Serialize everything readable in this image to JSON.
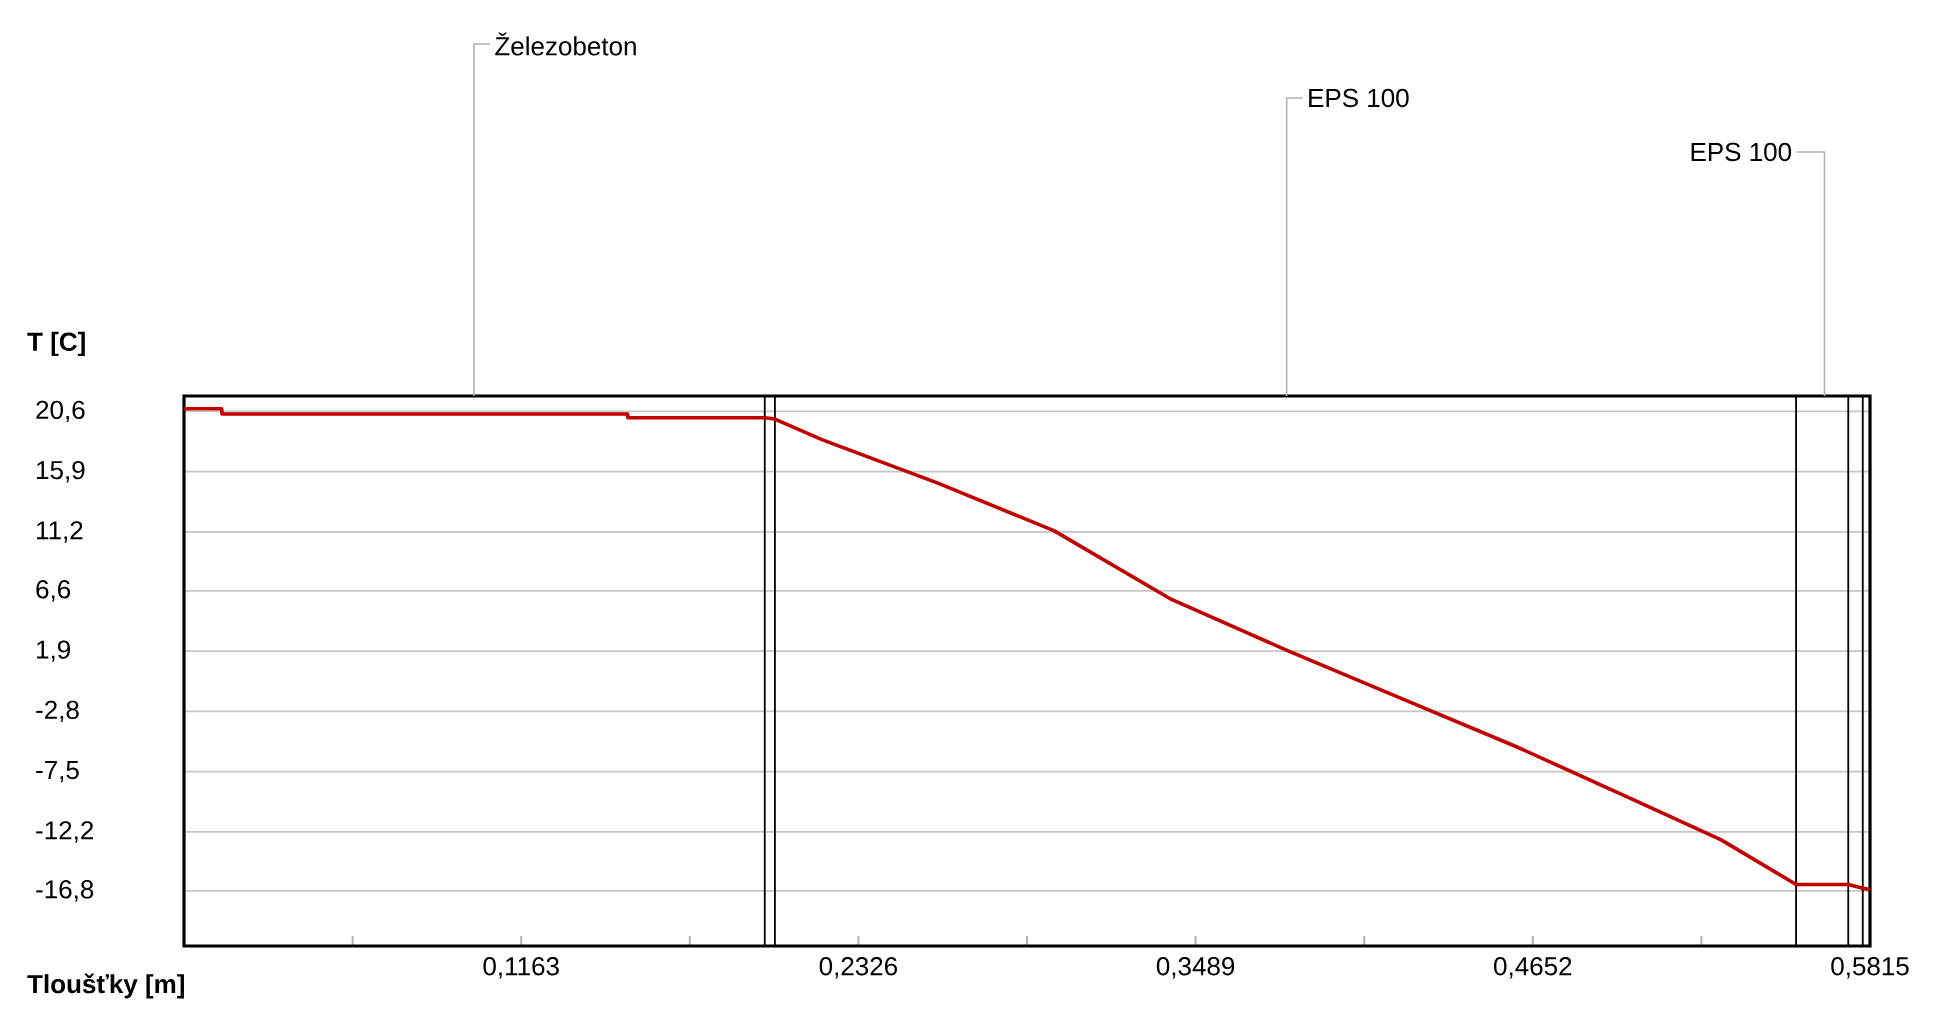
{
  "chart_data": {
    "type": "line",
    "xlabel": "Tloušťky [m]",
    "ylabel": "T [C]",
    "x": [
      0,
      0.013,
      0.0131,
      0.153,
      0.1531,
      0.2003,
      0.2038,
      0.22,
      0.26,
      0.3,
      0.34,
      0.381,
      0.42,
      0.46,
      0.5,
      0.53,
      0.556,
      0.574,
      0.579,
      0.5815
    ],
    "series": [
      {
        "color": "#c00000",
        "values": [
          20.8,
          20.8,
          20.4,
          20.4,
          20.1,
          20.1,
          20.0,
          18.4,
          15.0,
          11.3,
          6.0,
          1.9,
          -1.8,
          -5.6,
          -9.7,
          -12.8,
          -16.3,
          -16.3,
          -16.6,
          -16.7
        ]
      }
    ],
    "xlim": [
      0,
      0.5815
    ],
    "ylim": [
      -21.1,
      21.8
    ],
    "xticks": [
      {
        "value": 0.05815,
        "label": null
      },
      {
        "value": 0.1163,
        "label": "0,1163"
      },
      {
        "value": 0.17445,
        "label": null
      },
      {
        "value": 0.2326,
        "label": "0,2326"
      },
      {
        "value": 0.29075,
        "label": null
      },
      {
        "value": 0.3489,
        "label": "0,3489"
      },
      {
        "value": 0.40705,
        "label": null
      },
      {
        "value": 0.4652,
        "label": "0,4652"
      },
      {
        "value": 0.52335,
        "label": null
      },
      {
        "value": 0.5815,
        "label": "0,5815"
      }
    ],
    "yticks": [
      {
        "value": 20.6,
        "label": "20,6"
      },
      {
        "value": 15.9,
        "label": "15,9"
      },
      {
        "value": 11.2,
        "label": "11,2"
      },
      {
        "value": 6.6,
        "label": "6,6"
      },
      {
        "value": 1.9,
        "label": "1,9"
      },
      {
        "value": -2.8,
        "label": "-2,8"
      },
      {
        "value": -7.5,
        "label": "-7,5"
      },
      {
        "value": -12.2,
        "label": "-12,2"
      },
      {
        "value": -16.8,
        "label": "-16,8"
      }
    ],
    "grid": "y",
    "marker": "none",
    "line_style": "solid",
    "ref_lines": [
      {
        "axis": "x",
        "value": 0.2003,
        "color": "#000000"
      },
      {
        "axis": "x",
        "value": 0.2038,
        "color": "#000000"
      },
      {
        "axis": "x",
        "value": 0.556,
        "color": "#000000"
      },
      {
        "axis": "x",
        "value": 0.574,
        "color": "#000000"
      },
      {
        "axis": "x",
        "value": 0.579,
        "color": "#000000"
      }
    ],
    "annotations": [
      "Železobeton",
      "EPS 100",
      "EPS 100"
    ]
  }
}
